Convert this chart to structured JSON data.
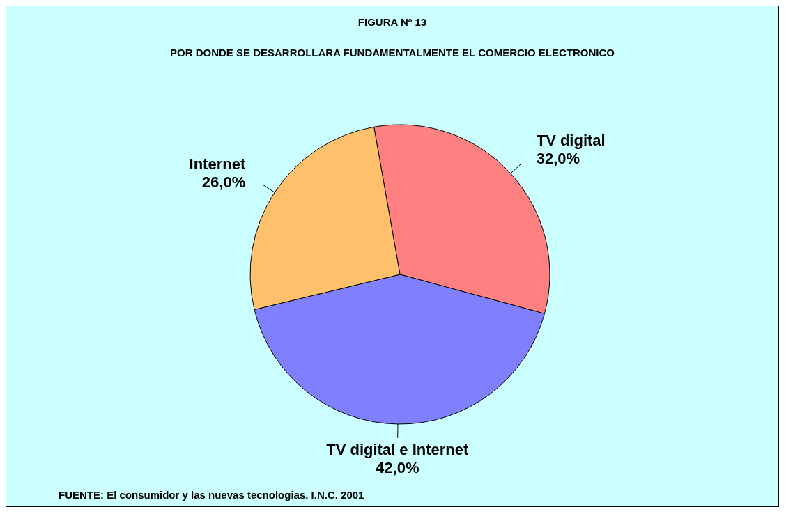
{
  "chart_data": {
    "type": "pie",
    "title": "FIGURA Nº 13",
    "subtitle": "POR DONDE SE DESARROLLARA FUNDAMENTALMENTE EL COMERCIO ELECTRONICO",
    "categories": [
      "TV digital",
      "TV digital e Internet",
      "Internet"
    ],
    "values": [
      32,
      42,
      26
    ],
    "value_labels": [
      "32,0%",
      "42,0%",
      "26,0%"
    ],
    "colors": [
      "#ff8080",
      "#8080ff",
      "#ffc06b"
    ],
    "annotations": [
      "FUENTE: El consumidor y las nuevas tecnologias. I.N.C. 2001"
    ],
    "legend": false
  }
}
